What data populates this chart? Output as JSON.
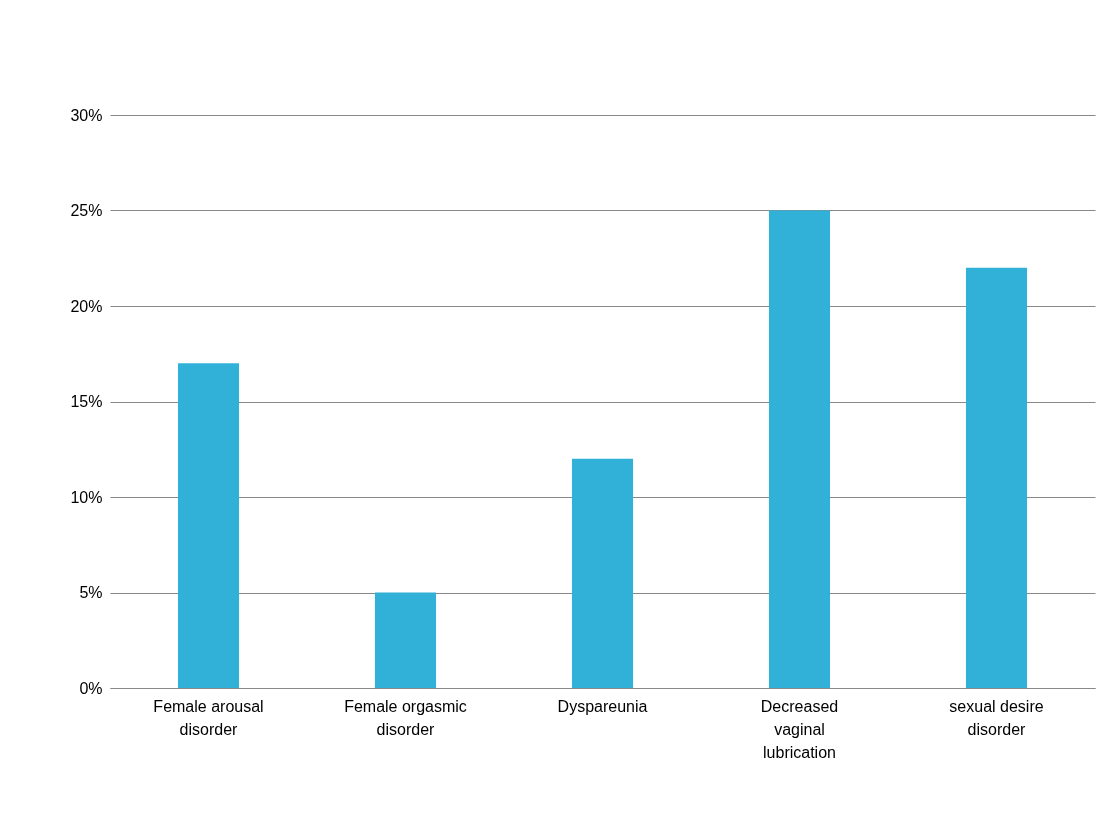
{
  "chart_data": {
    "type": "bar",
    "categories": [
      "Female arousal disorder",
      "Female orgasmic disorder",
      "Dyspareunia",
      "Decreased vaginal lubrication",
      "sexual desire disorder"
    ],
    "values": [
      17,
      5,
      12,
      25,
      22
    ],
    "color": "#31b0d8",
    "ylim": [
      0,
      30
    ],
    "yticks": [
      {
        "value": 0,
        "label": "0%"
      },
      {
        "value": 5,
        "label": "5%"
      },
      {
        "value": 10,
        "label": "10%"
      },
      {
        "value": 15,
        "label": "15%"
      },
      {
        "value": 20,
        "label": "20%"
      },
      {
        "value": 25,
        "label": "25%"
      },
      {
        "value": 30,
        "label": "30%"
      }
    ],
    "grid": "y"
  }
}
